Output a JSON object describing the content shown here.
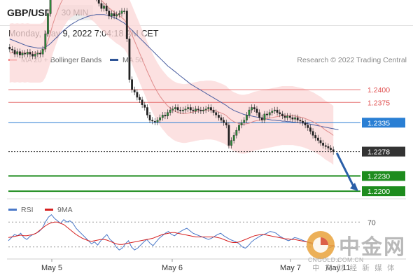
{
  "header": {
    "symbol": "GBP/USD",
    "timeframe": "30 MIN"
  },
  "datetime": "Monday, May 9, 2022 7:04:18 AM CET",
  "legend": {
    "ma20": {
      "label": "MA 20 + Bollinger Bands",
      "color": "#f08080"
    },
    "ma50": {
      "label": "MA 50",
      "color": "#2f5597"
    }
  },
  "copyright": "Research © 2022 Trading Central",
  "rsi_legend": {
    "rsi": {
      "label": "RSI",
      "color": "#4a78c8"
    },
    "ma9": {
      "label": "9MA",
      "color": "#d62020"
    }
  },
  "watermark": {
    "cn": "中金网",
    "url": "CNGOLD.COM.CN",
    "sub": "中 文 财 经 新 媒 体"
  },
  "chart_data": [
    {
      "type": "candlestick",
      "title": "GBP/USD",
      "ylim": [
        1.2185,
        1.2425
      ],
      "x_ticks": [
        "May 5",
        "May 6",
        "May 7",
        "May 11"
      ],
      "levels": [
        {
          "label": "1.2400",
          "value": 1.24,
          "kind": "resistance",
          "color": "#e05050"
        },
        {
          "label": "1.2375",
          "value": 1.2375,
          "kind": "resistance",
          "color": "#e05050"
        },
        {
          "label": "1.2335",
          "value": 1.2335,
          "kind": "pivot",
          "color": "#2a7fd4"
        },
        {
          "label": "1.2278",
          "value": 1.2278,
          "kind": "last",
          "color": "#333333"
        },
        {
          "label": "1.2230",
          "value": 1.223,
          "kind": "target",
          "color": "#1e8c1e"
        },
        {
          "label": "1.2200",
          "value": 1.22,
          "kind": "target",
          "color": "#1e8c1e"
        }
      ],
      "close": [
        1.248,
        1.2478,
        1.247,
        1.2475,
        1.2468,
        1.2472,
        1.247,
        1.2474,
        1.247,
        1.2466,
        1.247,
        1.2472,
        1.247,
        1.248,
        1.251,
        1.255,
        1.26,
        1.2625,
        1.2618,
        1.2615,
        1.2622,
        1.2618,
        1.261,
        1.2615,
        1.2612,
        1.262,
        1.2615,
        1.2605,
        1.261,
        1.2612,
        1.262,
        1.2618,
        1.26,
        1.2595,
        1.258,
        1.257,
        1.256,
        1.2565,
        1.2555,
        1.2545,
        1.255,
        1.2545,
        1.2548,
        1.255,
        1.2555,
        1.2555,
        1.25,
        1.242,
        1.24,
        1.2395,
        1.2385,
        1.238,
        1.237,
        1.2365,
        1.235,
        1.234,
        1.2338,
        1.2336,
        1.234,
        1.2345,
        1.235,
        1.2348,
        1.2355,
        1.236,
        1.2362,
        1.2365,
        1.236,
        1.2358,
        1.236,
        1.2362,
        1.2365,
        1.236,
        1.2358,
        1.2362,
        1.236,
        1.2358,
        1.236,
        1.2362,
        1.2365,
        1.236,
        1.2355,
        1.235,
        1.2345,
        1.234,
        1.2335,
        1.233,
        1.229,
        1.23,
        1.231,
        1.232,
        1.233,
        1.2335,
        1.234,
        1.235,
        1.236,
        1.2365,
        1.2362,
        1.2355,
        1.2345,
        1.234,
        1.2352,
        1.235,
        1.2355,
        1.2358,
        1.236,
        1.2355,
        1.2352,
        1.2348,
        1.2345,
        1.2348,
        1.2345,
        1.2342,
        1.2345,
        1.234,
        1.2338,
        1.2335,
        1.233,
        1.2325,
        1.2318,
        1.231,
        1.2305,
        1.23,
        1.2295,
        1.229,
        1.2288,
        1.2285,
        1.2282,
        1.2278
      ],
      "ma20": [
        1.2472,
        1.2473,
        1.2472,
        1.2473,
        1.2472,
        1.2473,
        1.2472,
        1.2473,
        1.2472,
        1.2472,
        1.2472,
        1.2472,
        1.2472,
        1.2474,
        1.2482,
        1.2495,
        1.2512,
        1.253,
        1.2545,
        1.2558,
        1.257,
        1.258,
        1.2588,
        1.2595,
        1.26,
        1.2603,
        1.2606,
        1.2606,
        1.2605,
        1.2604,
        1.2602,
        1.26,
        1.2596,
        1.2592,
        1.2587,
        1.2581,
        1.2576,
        1.2571,
        1.2566,
        1.2561,
        1.2557,
        1.2553,
        1.2549,
        1.2546,
        1.2542,
        1.2538,
        1.253,
        1.252,
        1.2508,
        1.2496,
        1.2484,
        1.2472,
        1.246,
        1.2448,
        1.2436,
        1.2425,
        1.2414,
        1.2404,
        1.2395,
        1.2387,
        1.238,
        1.2374,
        1.2368,
        1.2364,
        1.236,
        1.2357,
        1.2355,
        1.2354,
        1.2353,
        1.2353,
        1.2354,
        1.2355,
        1.2356,
        1.2357,
        1.2358,
        1.2359,
        1.2359,
        1.236,
        1.236,
        1.236,
        1.2359,
        1.2358,
        1.2356,
        1.2354,
        1.2352,
        1.2349,
        1.2344,
        1.234,
        1.2337,
        1.2335,
        1.2333,
        1.2332,
        1.2332,
        1.2333,
        1.2334,
        1.2336,
        1.2338,
        1.2339,
        1.234,
        1.2341,
        1.2342,
        1.2343,
        1.2344,
        1.2345,
        1.2346,
        1.2347,
        1.2348,
        1.2349,
        1.2349,
        1.2349,
        1.2349,
        1.2349,
        1.2348,
        1.2347,
        1.2346,
        1.2345,
        1.2343,
        1.2341,
        1.2339,
        1.2337,
        1.2334,
        1.2331,
        1.2328,
        1.2324,
        1.232,
        1.2317,
        1.2314,
        1.231
      ],
      "ma50": [
        1.25,
        1.2498,
        1.2496,
        1.2494,
        1.2492,
        1.249,
        1.2488,
        1.2486,
        1.2485,
        1.2484,
        1.2483,
        1.2482,
        1.2482,
        1.2482,
        1.2484,
        1.2487,
        1.2491,
        1.2496,
        1.2501,
        1.2506,
        1.2511,
        1.2516,
        1.252,
        1.2524,
        1.2528,
        1.2531,
        1.2534,
        1.2537,
        1.2539,
        1.2541,
        1.2543,
        1.2545,
        1.2546,
        1.2547,
        1.2548,
        1.2548,
        1.2548,
        1.2548,
        1.2547,
        1.2546,
        1.2544,
        1.2542,
        1.254,
        1.2537,
        1.2534,
        1.2531,
        1.2527,
        1.2522,
        1.2517,
        1.2512,
        1.2507,
        1.2502,
        1.2497,
        1.2492,
        1.2487,
        1.2482,
        1.2477,
        1.2472,
        1.2467,
        1.2462,
        1.2457,
        1.2452,
        1.2447,
        1.2443,
        1.2439,
        1.2435,
        1.2431,
        1.2427,
        1.2423,
        1.2419,
        1.2415,
        1.2411,
        1.2408,
        1.2405,
        1.2402,
        1.2399,
        1.2396,
        1.2393,
        1.239,
        1.2387,
        1.2384,
        1.2381,
        1.2378,
        1.2375,
        1.2372,
        1.2369,
        1.2365,
        1.2362,
        1.2359,
        1.2357,
        1.2355,
        1.2353,
        1.2351,
        1.235,
        1.2349,
        1.2348,
        1.2347,
        1.2346,
        1.2345,
        1.2344,
        1.2343,
        1.2342,
        1.2341,
        1.234,
        1.234,
        1.2339,
        1.2339,
        1.2338,
        1.2338,
        1.2337,
        1.2337,
        1.2336,
        1.2336,
        1.2335,
        1.2335,
        1.2334,
        1.2334,
        1.2333,
        1.2332,
        1.2331,
        1.233,
        1.2329,
        1.2328,
        1.2327,
        1.2326,
        1.2325,
        1.2324,
        1.2323,
        1.2322,
        1.2321
      ]
    },
    {
      "type": "line",
      "title": "RSI",
      "ylim": [
        15,
        85
      ],
      "y_ticks": [
        "70"
      ],
      "series": [
        {
          "name": "RSI",
          "values": [
            40,
            45,
            50,
            48,
            52,
            45,
            42,
            47,
            50,
            52,
            55,
            60,
            70,
            78,
            82,
            76,
            72,
            68,
            74,
            70,
            72,
            68,
            60,
            55,
            50,
            45,
            40,
            35,
            38,
            33,
            40,
            45,
            50,
            42,
            38,
            30,
            25,
            28,
            35,
            40,
            30,
            25,
            28,
            33,
            38,
            42,
            36,
            32,
            38,
            44,
            48,
            52,
            55,
            50,
            48,
            52,
            55,
            58,
            60,
            56,
            52,
            50,
            48,
            46,
            44,
            42,
            44,
            47,
            50,
            52,
            48,
            45,
            42,
            40,
            38,
            35,
            30,
            28,
            32,
            38,
            42,
            45,
            48,
            50,
            52,
            55,
            54,
            52,
            48,
            45,
            42,
            40,
            42,
            45,
            44,
            42,
            40,
            38,
            36,
            34,
            32,
            30,
            28,
            26,
            28,
            30,
            32
          ]
        },
        {
          "name": "9MA",
          "values": [
            45,
            46,
            47,
            48,
            49,
            48,
            48,
            49,
            50,
            52,
            56,
            60,
            64,
            67,
            69,
            70,
            70,
            68,
            66,
            62,
            58,
            54,
            50,
            47,
            44,
            42,
            40,
            39,
            40,
            41,
            42,
            42,
            41,
            39,
            37,
            35,
            34,
            34,
            35,
            36,
            37,
            38,
            39,
            40,
            41,
            42,
            43,
            44,
            46,
            48,
            50,
            51,
            52,
            53,
            53,
            52,
            51,
            50,
            49,
            48,
            47,
            46,
            46,
            46,
            46,
            46,
            46,
            46,
            45,
            44,
            42,
            40,
            38,
            37,
            37,
            38,
            40,
            42,
            44,
            46,
            48,
            49,
            50,
            50,
            49,
            48,
            47,
            46,
            45,
            44,
            43,
            43,
            42,
            42,
            41,
            40,
            39,
            38,
            37,
            36,
            35,
            34,
            33,
            32,
            32,
            32,
            32
          ]
        }
      ]
    }
  ]
}
